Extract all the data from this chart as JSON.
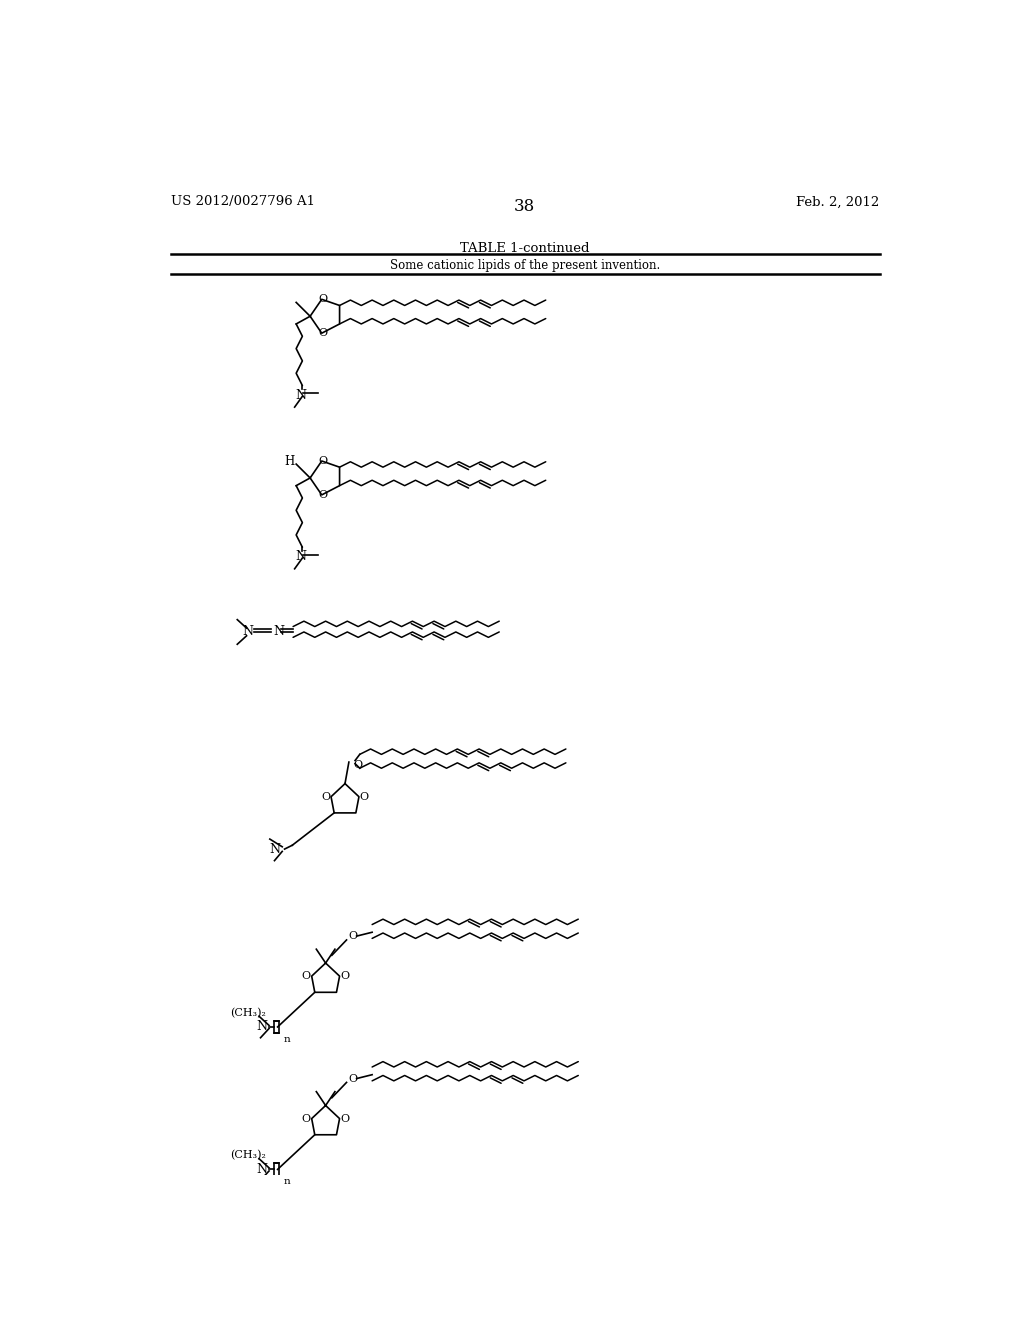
{
  "page_number": "38",
  "patent_number": "US 2012/0027796 A1",
  "patent_date": "Feb. 2, 2012",
  "table_title": "TABLE 1-continued",
  "table_subtitle": "Some cationic lipids of the present invention.",
  "background_color": "#ffffff",
  "line_color": "#000000",
  "text_color": "#000000",
  "fig_width": 10.24,
  "fig_height": 13.2,
  "dpi": 100
}
